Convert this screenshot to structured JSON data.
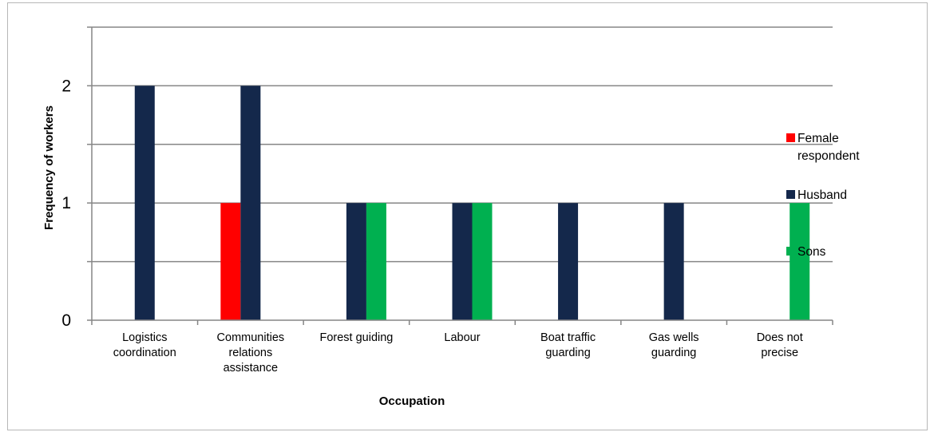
{
  "chart_data": {
    "type": "bar",
    "title": "",
    "xlabel": "Occupation",
    "ylabel": "Frequency of workers",
    "ylim": [
      0,
      2.5
    ],
    "y_ticks": [
      "0",
      "1",
      "2"
    ],
    "grid": true,
    "legend_position": "right",
    "categories": [
      [
        "Logistics",
        "coordination"
      ],
      [
        "Communities",
        "relations",
        "assistance"
      ],
      [
        "Forest guiding"
      ],
      [
        "Labour"
      ],
      [
        "Boat traffic",
        "guarding"
      ],
      [
        "Gas wells",
        "guarding"
      ],
      [
        "Does not",
        "precise"
      ]
    ],
    "series": [
      {
        "name": "Female respondent",
        "legend_lines": [
          "Female",
          "respondent"
        ],
        "color": "#ff0000",
        "values": [
          0,
          1,
          0,
          0,
          0,
          0,
          0
        ]
      },
      {
        "name": "Husband",
        "legend_lines": [
          "Husband"
        ],
        "color": "#14284b",
        "values": [
          2,
          2,
          1,
          1,
          1,
          1,
          0
        ]
      },
      {
        "name": "Sons",
        "legend_lines": [
          "Sons"
        ],
        "color": "#00b050",
        "values": [
          0,
          0,
          1,
          1,
          0,
          0,
          1
        ]
      }
    ]
  }
}
